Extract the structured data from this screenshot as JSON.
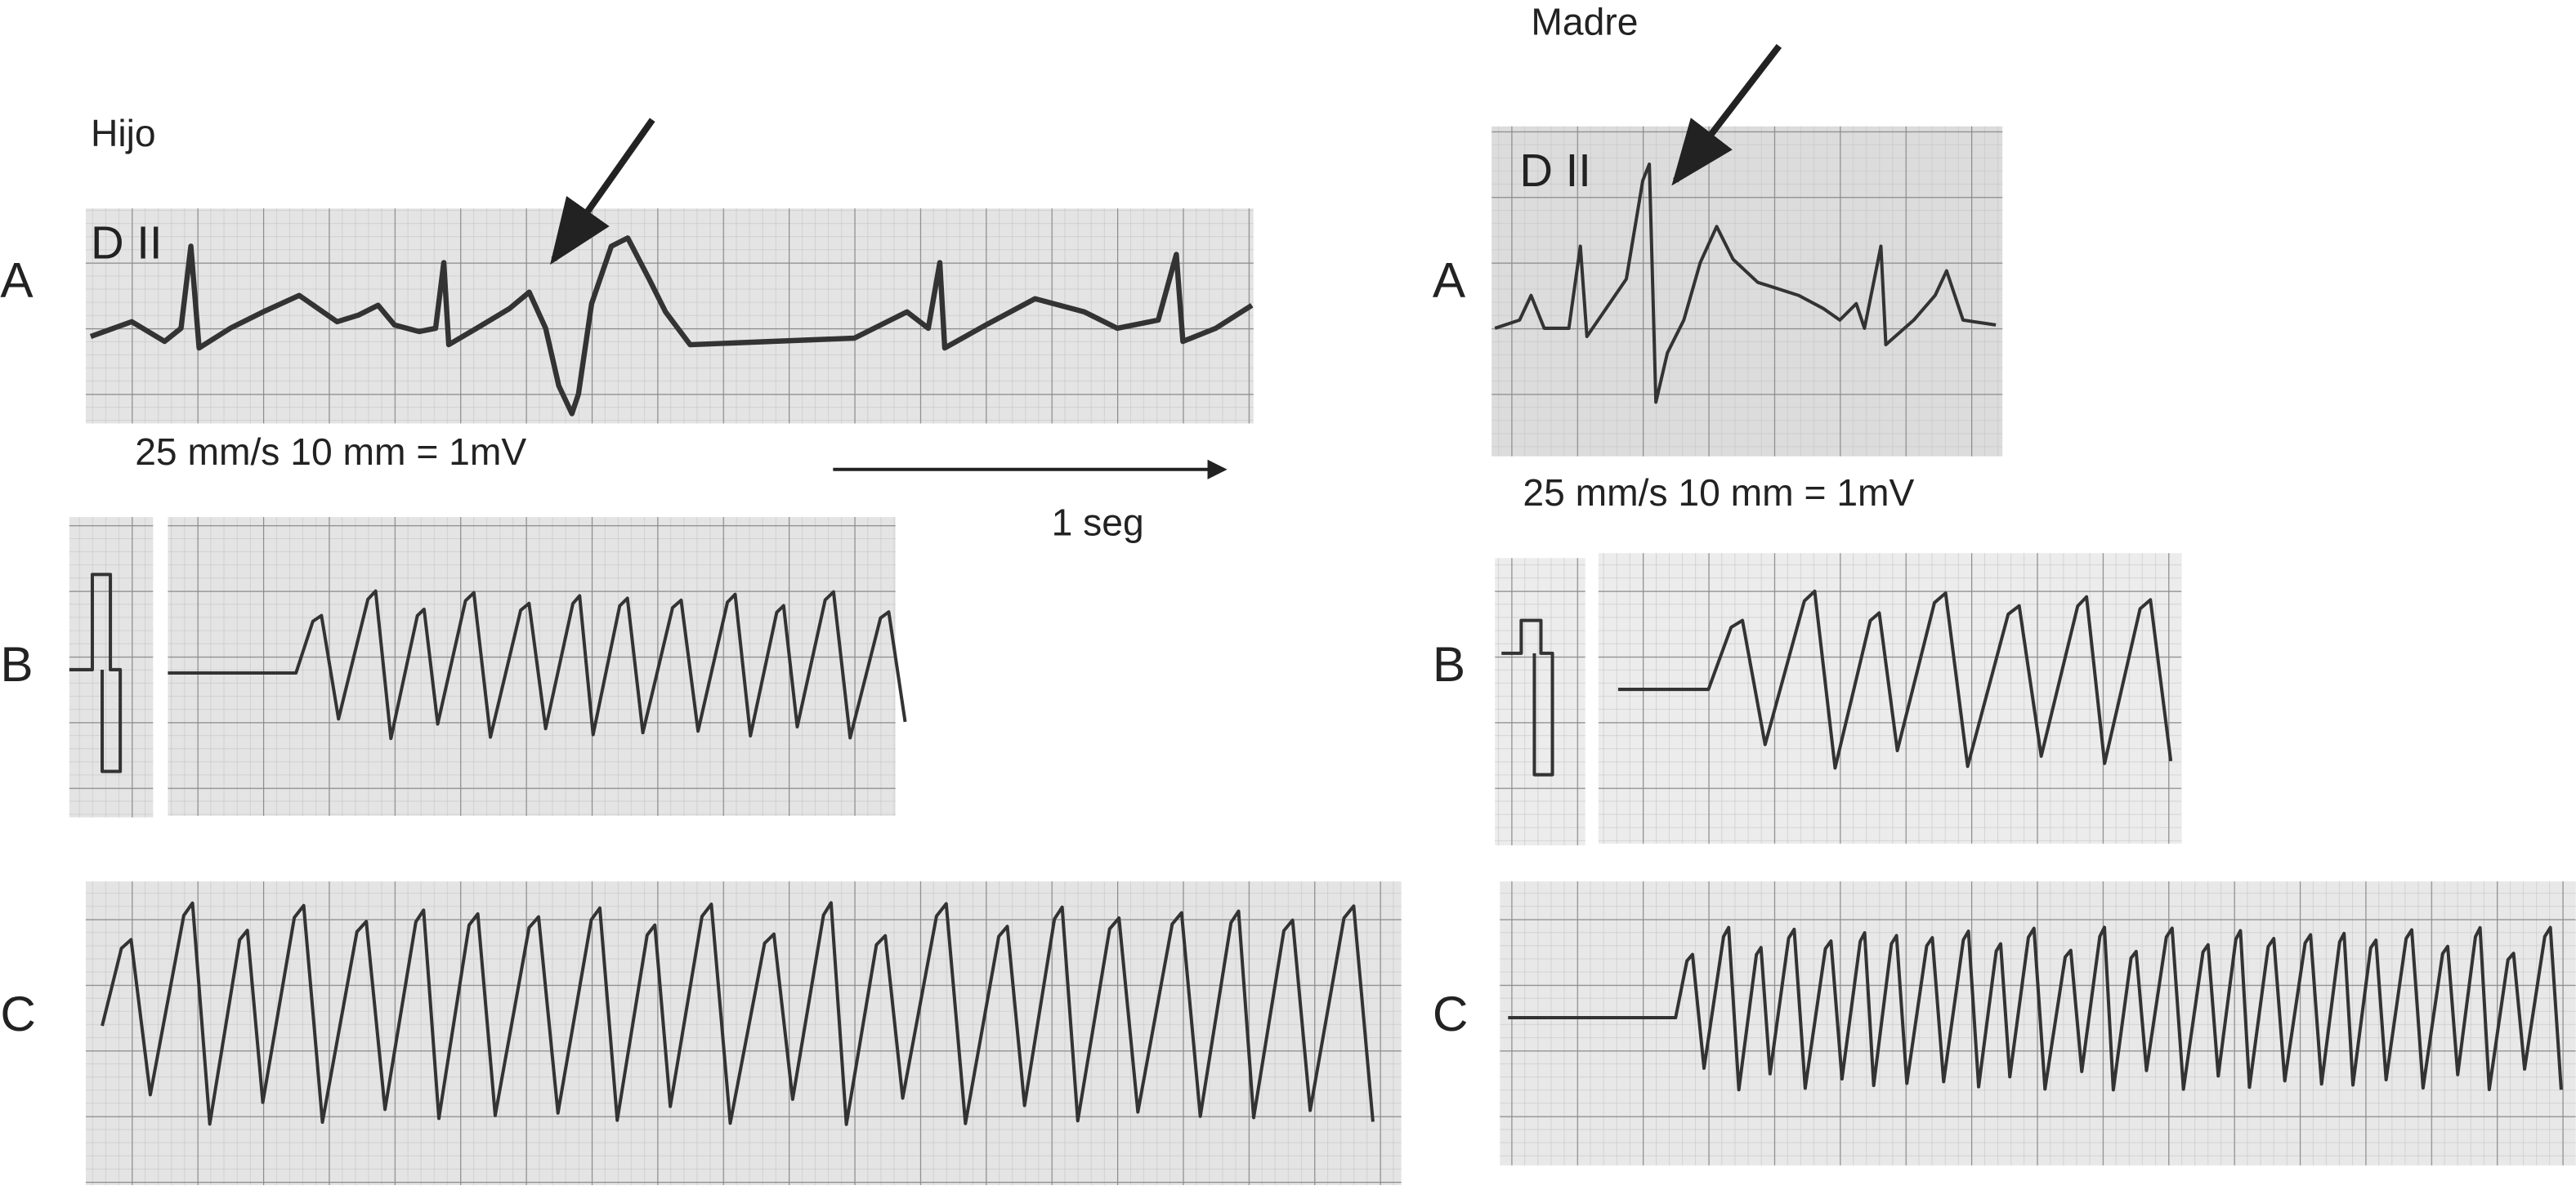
{
  "left": {
    "title": "Hijo",
    "lead": "D II",
    "scale": "25 mm/s 10 mm = 1mV",
    "time_label": "1 seg",
    "rows": [
      "A",
      "B",
      "C"
    ]
  },
  "right": {
    "title": "Madre",
    "lead": "D II",
    "scale": "25 mm/s 10 mm = 1mV",
    "rows": [
      "A",
      "B",
      "C"
    ]
  }
}
